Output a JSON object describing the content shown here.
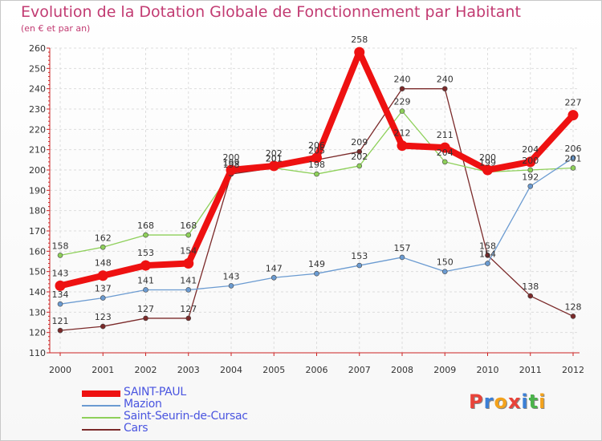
{
  "title": "Evolution de la Dotation Globale de Fonctionnement par Habitant",
  "subtitle": "(en € et par an)",
  "logo": {
    "text": "Proxiti",
    "letters": [
      "P",
      "r",
      "o",
      "x",
      "i",
      "t",
      "i"
    ],
    "colors": [
      "#e8433a",
      "#3b7fd6",
      "#f3a21b",
      "#e8433a",
      "#3b7fd6",
      "#4bb34b",
      "#f3a21b"
    ]
  },
  "chart_data": {
    "type": "line",
    "title": "Evolution de la Dotation Globale de Fonctionnement par Habitant",
    "xlabel": "",
    "ylabel": "(en € et par an)",
    "ylim": [
      110,
      260
    ],
    "yticks": [
      110,
      120,
      130,
      140,
      150,
      160,
      170,
      180,
      190,
      200,
      210,
      220,
      230,
      240,
      250,
      260
    ],
    "grid": true,
    "legend_position": "bottom-left",
    "x": [
      "2000",
      "2001",
      "2002",
      "2003",
      "2004",
      "2005",
      "2006",
      "2007",
      "2008",
      "2009",
      "2010",
      "2011",
      "2012"
    ],
    "series": [
      {
        "name": "SAINT-PAUL",
        "color": "#ee1111",
        "values": [
          143,
          148,
          153,
          154,
          200,
          202,
          206,
          258,
          212,
          211,
          200,
          204,
          227
        ]
      },
      {
        "name": "Mazion",
        "color": "#6b9bd1",
        "values": [
          134,
          137,
          141,
          141,
          143,
          147,
          149,
          153,
          157,
          150,
          154,
          192,
          206
        ]
      },
      {
        "name": "Saint-Seurin-de-Cursac",
        "color": "#8ed05a",
        "values": [
          158,
          162,
          168,
          168,
          199,
          201,
          198,
          202,
          229,
          204,
          199,
          200,
          201
        ]
      },
      {
        "name": "Cars",
        "color": "#7b2a2a",
        "values": [
          121,
          123,
          127,
          127,
          198,
          201,
          205,
          209,
          240,
          240,
          158,
          138,
          128
        ]
      }
    ]
  }
}
